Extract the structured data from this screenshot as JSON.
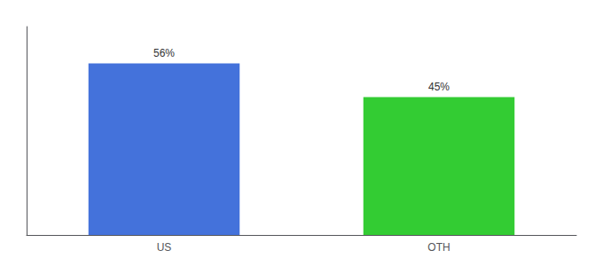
{
  "chart_data": {
    "type": "bar",
    "categories": [
      "US",
      "OTH"
    ],
    "values": [
      56,
      45
    ],
    "colors": [
      "#4472db",
      "#33cc33"
    ],
    "ylim": [
      0,
      68
    ],
    "data_labels": true,
    "value_labels": [
      "56%",
      "45%"
    ],
    "tick_labels": "x",
    "grid": false
  }
}
